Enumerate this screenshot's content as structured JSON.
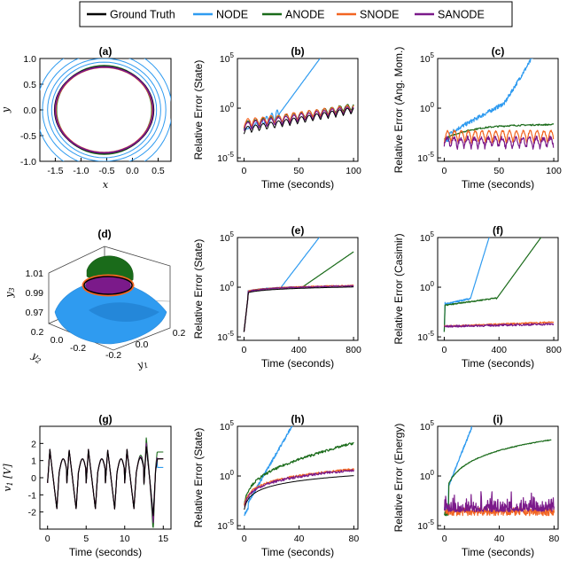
{
  "legend": {
    "items": [
      {
        "label": "Ground Truth",
        "color": "#000000"
      },
      {
        "label": "NODE",
        "color": "#2f9bf0"
      },
      {
        "label": "ANODE",
        "color": "#1a6b1a"
      },
      {
        "label": "SNODE",
        "color": "#f26522"
      },
      {
        "label": "SANODE",
        "color": "#7b1a8a"
      }
    ]
  },
  "colors": {
    "truth": "#000000",
    "node": "#2f9bf0",
    "anode": "#1a6b1a",
    "snode": "#f26522",
    "sanode": "#7b1a8a"
  },
  "chart_data": [
    {
      "id": "a",
      "title": "(a)",
      "type": "line",
      "xlabel": "x",
      "ylabel": "y",
      "xlim": [
        -1.8,
        0.75
      ],
      "ylim": [
        -1.0,
        1.0
      ],
      "xticks": [
        -1.5,
        -1.0,
        -0.5,
        0.0,
        0.5
      ],
      "xtick_labels": [
        "-1.5",
        "-1.0",
        "-0.5",
        "0.0",
        "0.5"
      ],
      "yticks": [
        -1.0,
        -0.5,
        0.0,
        0.5,
        1.0
      ],
      "ytick_labels": [
        "-1.0",
        "-0.5",
        "0.0",
        "0.5",
        "1.0"
      ],
      "orbits": [
        {
          "series": "NODE",
          "cx": -0.55,
          "cy": 0.0,
          "rx": [
            1.02,
            1.1,
            1.2,
            1.32
          ],
          "ry": [
            0.93,
            1.0,
            1.1,
            1.25
          ]
        },
        {
          "series": "ANODE",
          "cx": -0.55,
          "cy": 0.0,
          "rx": [
            0.93
          ],
          "ry": [
            0.86
          ]
        },
        {
          "series": "Ground Truth",
          "cx": -0.55,
          "cy": 0.0,
          "rx": [
            0.96
          ],
          "ry": [
            0.84
          ]
        },
        {
          "series": "SNODE",
          "cx": -0.55,
          "cy": 0.0,
          "rx": [
            0.94
          ],
          "ry": [
            0.83
          ]
        },
        {
          "series": "SANODE",
          "cx": -0.55,
          "cy": 0.0,
          "rx": [
            0.95
          ],
          "ry": [
            0.835
          ]
        }
      ]
    },
    {
      "id": "b",
      "title": "(b)",
      "type": "line",
      "yscale": "log",
      "xlabel": "Time (seconds)",
      "ylabel": "Relative Error (State)",
      "xlim": [
        -6,
        104
      ],
      "ylim_exp": [
        -5,
        5
      ],
      "xticks": [
        0,
        50,
        100
      ],
      "xtick_labels": [
        "0",
        "50",
        "100"
      ],
      "ytick_labels": [
        "10-5",
        "100",
        "105"
      ]
    },
    {
      "id": "c",
      "title": "(c)",
      "type": "line",
      "yscale": "log",
      "xlabel": "Time (seconds)",
      "ylabel": "Relative Error (Ang. Mom.)",
      "xlim": [
        -6,
        104
      ],
      "ylim_exp": [
        -5,
        5
      ],
      "xticks": [
        0,
        50,
        100
      ],
      "xtick_labels": [
        "0",
        "50",
        "100"
      ],
      "ytick_labels": [
        "10-5",
        "100",
        "105"
      ]
    },
    {
      "id": "d",
      "title": "(d)",
      "type": "surface3d",
      "xlabel": "y1",
      "ylabel": "y2",
      "zlabel": "y3",
      "ztick_labels": [
        "0.97",
        "0.99",
        "1.01"
      ],
      "y2tick_labels": [
        "0.2",
        "0.0",
        "-0.2"
      ],
      "y1tick_labels": [
        "-0.2",
        "0.0",
        "0.2"
      ]
    },
    {
      "id": "e",
      "title": "(e)",
      "type": "line",
      "yscale": "log",
      "xlabel": "Time (seconds)",
      "ylabel": "Relative Error (State)",
      "xlim": [
        -48,
        832
      ],
      "ylim_exp": [
        -5,
        5
      ],
      "xticks": [
        0,
        400,
        800
      ],
      "xtick_labels": [
        "0",
        "400",
        "800"
      ],
      "ytick_labels": [
        "10-5",
        "100",
        "105"
      ]
    },
    {
      "id": "f",
      "title": "(f)",
      "type": "line",
      "yscale": "log",
      "xlabel": "Time (seconds)",
      "ylabel": "Relative Error (Casimir)",
      "xlim": [
        -48,
        832
      ],
      "ylim_exp": [
        -5,
        5
      ],
      "xticks": [
        0,
        400,
        800
      ],
      "xtick_labels": [
        "0",
        "400",
        "800"
      ],
      "ytick_labels": [
        "10-5",
        "100",
        "105"
      ]
    },
    {
      "id": "g",
      "title": "(g)",
      "type": "line",
      "xlabel": "Time (seconds)",
      "ylabel": "v1 [V]",
      "xlim": [
        -1,
        16
      ],
      "ylim": [
        -3,
        3
      ],
      "xticks": [
        0,
        5,
        10,
        15
      ],
      "xtick_labels": [
        "0",
        "5",
        "10",
        "15"
      ],
      "yticks": [
        -2,
        -1,
        0,
        1,
        2
      ],
      "ytick_labels": [
        "-2",
        "-1",
        "0",
        "1",
        "2"
      ]
    },
    {
      "id": "h",
      "title": "(h)",
      "type": "line",
      "yscale": "log",
      "xlabel": "Time (seconds)",
      "ylabel": "Relative Error (State)",
      "xlim": [
        -5,
        83
      ],
      "ylim_exp": [
        -5,
        5
      ],
      "xticks": [
        0,
        40,
        80
      ],
      "xtick_labels": [
        "0",
        "40",
        "80"
      ],
      "ytick_labels": [
        "10-5",
        "100",
        "105"
      ]
    },
    {
      "id": "i",
      "title": "(i)",
      "type": "line",
      "yscale": "log",
      "xlabel": "Time (seconds)",
      "ylabel": "Relative Error (Energy)",
      "xlim": [
        -5,
        83
      ],
      "ylim_exp": [
        -5,
        5
      ],
      "xticks": [
        0,
        40,
        80
      ],
      "xtick_labels": [
        "0",
        "40",
        "80"
      ],
      "ytick_labels": [
        "10-5",
        "100",
        "105"
      ]
    }
  ]
}
